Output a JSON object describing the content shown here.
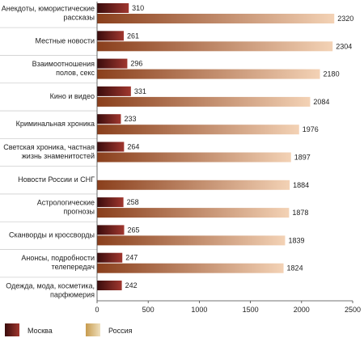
{
  "chart_data": {
    "type": "bar",
    "orientation": "horizontal",
    "categories": [
      [
        "Анекдоты, юмористические",
        "рассказы"
      ],
      [
        "Местные новости"
      ],
      [
        "Взаимоотношения",
        "полов, секс"
      ],
      [
        "Кино и видео"
      ],
      [
        "Криминальная хроника"
      ],
      [
        "Светская хроника, частная",
        "жизнь знаменитостей"
      ],
      [
        "Новости России и СНГ"
      ],
      [
        "Астрологические",
        "прогнозы"
      ],
      [
        "Сканворды и кроссворды"
      ],
      [
        "Анонсы, подробности",
        "телепередач"
      ],
      [
        "Одежда, мода, косметика,",
        "парфюмерия"
      ]
    ],
    "series": [
      {
        "name": "Москва",
        "values": [
          310,
          261,
          296,
          331,
          233,
          264,
          null,
          258,
          265,
          247,
          242
        ]
      },
      {
        "name": "Россия",
        "values": [
          2320,
          2304,
          2180,
          2084,
          1976,
          1897,
          1884,
          1878,
          1839,
          1824,
          null
        ]
      }
    ],
    "xlim": [
      0,
      2500
    ],
    "xticks": [
      "0",
      "500",
      "1000",
      "1500",
      "2000",
      "2500"
    ],
    "legend_position": "bottom",
    "colors": {
      "moscow_dark": "#3a0c0c",
      "moscow_light": "#a0372f",
      "russia_dark": "#8a3f1c",
      "russia_light": "#f3d2b5",
      "legend_russia_dark": "#c79b4e",
      "legend_russia_light": "#efe0bd"
    }
  }
}
